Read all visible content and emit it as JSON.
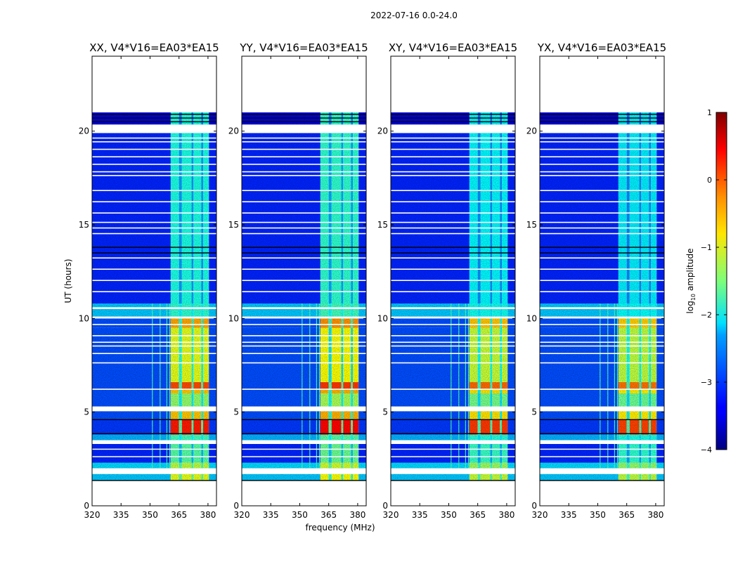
{
  "chart_data": {
    "type": "heatmap",
    "suptitle": "2022-07-16 0.0-24.0",
    "xlabel": "frequency (MHz)",
    "ylabel": "UT (hours)",
    "xlim": [
      320,
      384.4
    ],
    "ylim": [
      0,
      24
    ],
    "xticks": [
      "320",
      "335",
      "350",
      "365",
      "380"
    ],
    "xtick_values": [
      320,
      335,
      350,
      365,
      380
    ],
    "yticks": [
      "0",
      "5",
      "10",
      "15",
      "20"
    ],
    "ytick_values": [
      0,
      5,
      10,
      15,
      20
    ],
    "colorbar": {
      "label": "log10 amplitude",
      "label_main": "log",
      "label_sub": "10",
      "label_rest": " amplitude",
      "vmin": -4,
      "vmax": 1,
      "ticks": [
        "1",
        "0",
        "−1",
        "−2",
        "−3",
        "−4"
      ],
      "tick_values": [
        1,
        0,
        -1,
        -2,
        -3,
        -4
      ],
      "colormap": "jet"
    },
    "panels": [
      {
        "title": "XX, V4*V16=EA03*EA15",
        "band_offset": 0.0
      },
      {
        "title": "YY, V4*V16=EA03*EA15",
        "band_offset": 0.1
      },
      {
        "title": "XY, V4*V16=EA03*EA15",
        "band_offset": -0.15
      },
      {
        "title": "YX, V4*V16=EA03*EA15",
        "band_offset": -0.2
      }
    ],
    "band_columns_mhz": [
      [
        360.7,
        365.0
      ],
      [
        366.5,
        371.5
      ],
      [
        372.5,
        376.5
      ],
      [
        377.5,
        380.5
      ]
    ],
    "segments_hours_log10": [
      {
        "t": [
          1.35,
          1.7
        ],
        "bg": -2.4,
        "band": -1.0
      },
      {
        "t": [
          2.0,
          2.3
        ],
        "bg": -2.3,
        "band": -1.2
      },
      {
        "t": [
          2.3,
          3.3
        ],
        "bg": -3.2,
        "band": -1.7
      },
      {
        "t": [
          3.5,
          3.8
        ],
        "bg": -2.5,
        "band": -1.8
      },
      {
        "t": [
          3.8,
          4.6
        ],
        "bg": -3.1,
        "band": 0.25
      },
      {
        "t": [
          4.6,
          5.05
        ],
        "bg": -3.0,
        "band": -0.6
      },
      {
        "t": [
          5.3,
          6.0
        ],
        "bg": -3.0,
        "band": -1.4
      },
      {
        "t": [
          6.0,
          6.2
        ],
        "bg": -3.0,
        "band": -0.6
      },
      {
        "t": [
          6.25,
          6.6
        ],
        "bg": -3.0,
        "band": 0.0
      },
      {
        "t": [
          6.6,
          9.5
        ],
        "bg": -3.0,
        "band": -1.0
      },
      {
        "t": [
          9.5,
          10.0
        ],
        "bg": -3.0,
        "band": -0.45
      },
      {
        "t": [
          10.1,
          10.8
        ],
        "bg": -2.4,
        "band": -1.9
      },
      {
        "t": [
          10.8,
          19.9
        ],
        "bg": -3.2,
        "band": -2.0
      },
      {
        "t": [
          20.35,
          21.0
        ],
        "bg": -3.5,
        "band": -2.0
      }
    ],
    "flagged_gaps_hours": [
      [
        1.7,
        2.0
      ],
      [
        3.3,
        3.5
      ],
      [
        5.05,
        5.3
      ],
      [
        6.2,
        6.25
      ],
      [
        10.0,
        10.1
      ],
      [
        10.5,
        10.6
      ],
      [
        19.9,
        20.35
      ],
      [
        2.6,
        2.65
      ],
      [
        3.0,
        3.05
      ],
      [
        7.6,
        7.66
      ],
      [
        8.1,
        8.16
      ],
      [
        8.5,
        8.56
      ],
      [
        8.7,
        8.76
      ],
      [
        9.05,
        9.11
      ],
      [
        9.65,
        9.71
      ],
      [
        11.4,
        11.46
      ],
      [
        12.0,
        12.06
      ],
      [
        12.6,
        12.66
      ],
      [
        13.2,
        13.26
      ],
      [
        14.5,
        14.56
      ],
      [
        14.8,
        14.86
      ],
      [
        15.1,
        15.16
      ],
      [
        15.6,
        15.66
      ],
      [
        16.2,
        16.26
      ],
      [
        16.8,
        16.86
      ],
      [
        17.6,
        17.66
      ],
      [
        17.8,
        17.86
      ],
      [
        18.2,
        18.26
      ],
      [
        18.6,
        18.66
      ],
      [
        19.0,
        19.06
      ],
      [
        19.4,
        19.46
      ],
      [
        19.6,
        19.66
      ]
    ],
    "dark_lines_hours": [
      1.35,
      3.85,
      4.6,
      13.5,
      13.8,
      20.5,
      20.7,
      20.9
    ],
    "rfi_lines": {
      "freqs_mhz": [
        351,
        355,
        358.5,
        360
      ],
      "t": [
        2.0,
        10.8
      ],
      "level": -1.8
    }
  }
}
